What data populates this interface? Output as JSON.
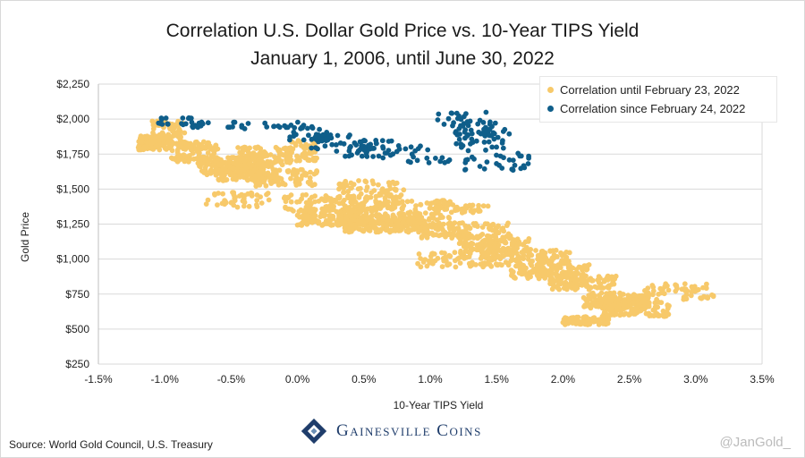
{
  "title_line1": "Correlation U.S. Dollar Gold Price vs. 10-Year TIPS Yield",
  "title_line2": "January 1, 2006, until June 30, 2022",
  "source": "Source: World Gold Council, U.S. Treasury",
  "handle": "@JanGold_",
  "logo_text": "Gainesville Coins",
  "chart_data": {
    "type": "scatter",
    "title": "Correlation U.S. Dollar Gold Price vs. 10-Year TIPS Yield",
    "subtitle": "January 1, 2006, until June 30, 2022",
    "xlabel": "10-Year TIPS Yield",
    "ylabel": "Gold Price",
    "xlim": [
      -1.5,
      3.5
    ],
    "ylim": [
      250,
      2250
    ],
    "x_ticks": [
      -1.5,
      -1.0,
      -0.5,
      0.0,
      0.5,
      1.0,
      1.5,
      2.0,
      2.5,
      3.0,
      3.5
    ],
    "x_tick_labels": [
      "-1.5%",
      "-1.0%",
      "-0.5%",
      "0.0%",
      "0.5%",
      "1.0%",
      "1.5%",
      "2.0%",
      "2.5%",
      "3.0%",
      "3.5%"
    ],
    "y_ticks": [
      250,
      500,
      750,
      1000,
      1250,
      1500,
      1750,
      2000,
      2250
    ],
    "y_tick_labels": [
      "$250",
      "$500",
      "$750",
      "$1,000",
      "$1,250",
      "$1,500",
      "$1,750",
      "$2,000",
      "$2,250"
    ],
    "grid": "horizontal",
    "legend_position": "top-right",
    "colors": {
      "before": "#f7c96a",
      "after": "#0f5e8a",
      "grid": "#d9d9d9",
      "axis": "#bfbfbf"
    },
    "series": [
      {
        "name": "Correlation until February 23, 2022",
        "color": "#f7c96a",
        "clusters": [
          {
            "x": [
              -1.2,
              -0.95
            ],
            "y": [
              1780,
              1880
            ],
            "n": 130
          },
          {
            "x": [
              -1.1,
              -0.85
            ],
            "y": [
              1830,
              1990
            ],
            "n": 70
          },
          {
            "x": [
              -0.95,
              -0.6
            ],
            "y": [
              1690,
              1840
            ],
            "n": 110
          },
          {
            "x": [
              -0.75,
              -0.25
            ],
            "y": [
              1600,
              1730
            ],
            "n": 170
          },
          {
            "x": [
              -0.6,
              -0.3
            ],
            "y": [
              1560,
              1680
            ],
            "n": 60
          },
          {
            "x": [
              -0.45,
              -0.05
            ],
            "y": [
              1660,
              1800
            ],
            "n": 120
          },
          {
            "x": [
              -0.35,
              0.15
            ],
            "y": [
              1520,
              1640
            ],
            "n": 90
          },
          {
            "x": [
              -0.05,
              0.15
            ],
            "y": [
              1700,
              1860
            ],
            "n": 55
          },
          {
            "x": [
              -0.7,
              -0.2
            ],
            "y": [
              1370,
              1480
            ],
            "n": 45
          },
          {
            "x": [
              -0.1,
              0.6
            ],
            "y": [
              1340,
              1460
            ],
            "n": 100
          },
          {
            "x": [
              0.0,
              0.55
            ],
            "y": [
              1240,
              1360
            ],
            "n": 170
          },
          {
            "x": [
              0.35,
              0.95
            ],
            "y": [
              1190,
              1310
            ],
            "n": 200
          },
          {
            "x": [
              0.55,
              1.15
            ],
            "y": [
              1240,
              1420
            ],
            "n": 160
          },
          {
            "x": [
              0.3,
              0.8
            ],
            "y": [
              1420,
              1560
            ],
            "n": 70
          },
          {
            "x": [
              0.9,
              1.6
            ],
            "y": [
              1150,
              1260
            ],
            "n": 120
          },
          {
            "x": [
              1.1,
              1.45
            ],
            "y": [
              1330,
              1390
            ],
            "n": 30
          },
          {
            "x": [
              1.2,
              1.75
            ],
            "y": [
              1050,
              1170
            ],
            "n": 120
          },
          {
            "x": [
              0.9,
              1.5
            ],
            "y": [
              940,
              1050
            ],
            "n": 70
          },
          {
            "x": [
              1.4,
              2.05
            ],
            "y": [
              950,
              1070
            ],
            "n": 140
          },
          {
            "x": [
              1.6,
              2.2
            ],
            "y": [
              860,
              960
            ],
            "n": 120
          },
          {
            "x": [
              1.9,
              2.4
            ],
            "y": [
              780,
              880
            ],
            "n": 100
          },
          {
            "x": [
              2.15,
              2.65
            ],
            "y": [
              650,
              760
            ],
            "n": 160
          },
          {
            "x": [
              2.3,
              2.8
            ],
            "y": [
              590,
              700
            ],
            "n": 130
          },
          {
            "x": [
              2.0,
              2.35
            ],
            "y": [
              530,
              590
            ],
            "n": 80
          },
          {
            "x": [
              2.6,
              3.1
            ],
            "y": [
              700,
              830
            ],
            "n": 45
          },
          {
            "x": [
              2.9,
              3.15
            ],
            "y": [
              720,
              790
            ],
            "n": 12
          }
        ]
      },
      {
        "name": "Correlation since February 24, 2022",
        "color": "#0f5e8a",
        "clusters": [
          {
            "x": [
              -1.05,
              -0.75
            ],
            "y": [
              1960,
              2010
            ],
            "n": 16
          },
          {
            "x": [
              -0.8,
              -0.35
            ],
            "y": [
              1930,
              1980
            ],
            "n": 20
          },
          {
            "x": [
              -0.3,
              0.05
            ],
            "y": [
              1930,
              1980
            ],
            "n": 14
          },
          {
            "x": [
              -0.1,
              0.25
            ],
            "y": [
              1850,
              1960
            ],
            "n": 20
          },
          {
            "x": [
              0.1,
              0.45
            ],
            "y": [
              1780,
              1890
            ],
            "n": 28
          },
          {
            "x": [
              0.25,
              0.6
            ],
            "y": [
              1730,
              1820
            ],
            "n": 22
          },
          {
            "x": [
              0.45,
              0.85
            ],
            "y": [
              1720,
              1850
            ],
            "n": 28
          },
          {
            "x": [
              0.8,
              1.15
            ],
            "y": [
              1680,
              1810
            ],
            "n": 18
          },
          {
            "x": [
              1.05,
              1.5
            ],
            "y": [
              1920,
              2050
            ],
            "n": 35
          },
          {
            "x": [
              1.15,
              1.6
            ],
            "y": [
              1790,
              1930
            ],
            "n": 45
          },
          {
            "x": [
              1.25,
              1.75
            ],
            "y": [
              1620,
              1780
            ],
            "n": 32
          }
        ]
      }
    ]
  }
}
